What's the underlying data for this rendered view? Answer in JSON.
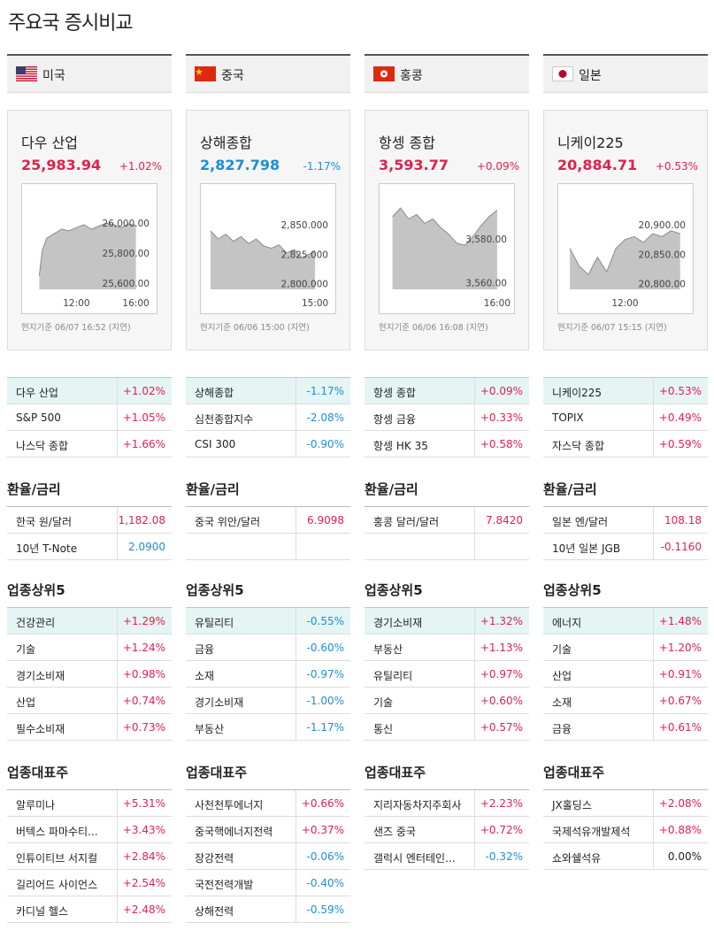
{
  "title": "주요국 증시비교",
  "markets": [
    {
      "country": "미국",
      "index_name": "다우 산업",
      "value": "25,983.94",
      "change": "+1.02%",
      "chart": {
        "type": "area",
        "xlim": [
          9.0,
          16.8
        ],
        "ylim": [
          25560,
          26160
        ],
        "xticks": [
          {
            "value": 12,
            "label": "12:00"
          },
          {
            "value": 16,
            "label": "16:00"
          }
        ],
        "yticks": [
          {
            "value": 26000,
            "label": "26,000.00"
          },
          {
            "value": 25800,
            "label": "25,800.00"
          },
          {
            "value": 25600,
            "label": "25,600.00"
          }
        ],
        "x": [
          9.5,
          9.7,
          10,
          10.5,
          11,
          11.5,
          12,
          12.5,
          13,
          13.5,
          14,
          14.5,
          15,
          15.5,
          16
        ],
        "values": [
          25650,
          25820,
          25900,
          25930,
          25960,
          25950,
          25970,
          25990,
          25960,
          25980,
          26000,
          25990,
          25970,
          25995,
          25984
        ]
      },
      "timestamp": "현지기준 06/07 16:52 (지연)",
      "indices": [
        [
          "다우 산업",
          "+1.02%"
        ],
        [
          "S&P 500",
          "+1.05%"
        ],
        [
          "나스닥 종합",
          "+1.66%"
        ]
      ],
      "fx_title": "환율/금리",
      "fx": [
        {
          "name": "한국 원/달러",
          "value": "1,182.08",
          "color": "#e0204f"
        },
        {
          "name": "10년 T-Note",
          "value": "2.0900",
          "color": "#1b8fd8"
        }
      ],
      "sectors_title": "업종상위5",
      "sectors": [
        [
          "건강관리",
          "+1.29%"
        ],
        [
          "기술",
          "+1.24%"
        ],
        [
          "경기소비재",
          "+0.98%"
        ],
        [
          "산업",
          "+0.74%"
        ],
        [
          "필수소비재",
          "+0.73%"
        ]
      ],
      "stocks_title": "업종대표주",
      "stocks": [
        [
          "알루미나",
          "+5.31%"
        ],
        [
          "버텍스 파마수티...",
          "+3.43%"
        ],
        [
          "인튜이티브 서지컬",
          "+2.84%"
        ],
        [
          "길리어드 사이언스",
          "+2.54%"
        ],
        [
          "카디널 헬스",
          "+2.48%"
        ]
      ]
    },
    {
      "country": "중국",
      "index_name": "상해종합",
      "value": "2,827.798",
      "change": "-1.17%",
      "chart": {
        "type": "area",
        "xlim": [
          9.5,
          15.6
        ],
        "ylim": [
          2795,
          2872
        ],
        "xticks": [
          {
            "value": 15,
            "label": "15:00"
          }
        ],
        "yticks": [
          {
            "value": 2850,
            "label": "2,850.000"
          },
          {
            "value": 2825,
            "label": "2,825.000"
          },
          {
            "value": 2800,
            "label": "2,800.000"
          }
        ],
        "x": [
          9.5,
          9.9,
          10.3,
          10.7,
          11.1,
          11.5,
          11.9,
          12.3,
          12.7,
          13.1,
          13.5,
          13.9,
          14.3,
          14.7,
          15
        ],
        "values": [
          2845,
          2838,
          2842,
          2836,
          2840,
          2834,
          2838,
          2832,
          2830,
          2833,
          2826,
          2829,
          2822,
          2825,
          2828
        ]
      },
      "timestamp": "현지기준 06/06 15:00 (지연)",
      "indices": [
        [
          "상해종합",
          "-1.17%"
        ],
        [
          "심천종합지수",
          "-2.08%"
        ],
        [
          "CSI 300",
          "-0.90%"
        ]
      ],
      "fx_title": "환율/금리",
      "fx": [
        {
          "name": "중국 위안/달러",
          "value": "6.9098",
          "color": "#e0204f"
        }
      ],
      "sectors_title": "업종상위5",
      "sectors": [
        [
          "유틸리티",
          "-0.55%"
        ],
        [
          "금융",
          "-0.60%"
        ],
        [
          "소재",
          "-0.97%"
        ],
        [
          "경기소비재",
          "-1.00%"
        ],
        [
          "부동산",
          "-1.17%"
        ]
      ],
      "stocks_title": "업종대표주",
      "stocks": [
        [
          "사천천투에너지",
          "+0.66%"
        ],
        [
          "중국핵에너지전력",
          "+0.37%"
        ],
        [
          "장강전력",
          "-0.06%"
        ],
        [
          "국전전력개발",
          "-0.40%"
        ],
        [
          "상해전력",
          "-0.59%"
        ]
      ]
    },
    {
      "country": "홍콩",
      "index_name": "항셍 종합",
      "value": "3,593.77",
      "change": "+0.09%",
      "chart": {
        "type": "area",
        "xlim": [
          9.3,
          16.5
        ],
        "ylim": [
          3557,
          3598
        ],
        "xticks": [
          {
            "value": 16,
            "label": "16:00"
          }
        ],
        "yticks": [
          {
            "value": 3580,
            "label": "3,580.00"
          },
          {
            "value": 3560,
            "label": "3,560.00"
          }
        ],
        "x": [
          9.5,
          10,
          10.5,
          11,
          11.5,
          12,
          12.5,
          13,
          13.5,
          14,
          14.5,
          15,
          15.5,
          16
        ],
        "values": [
          3590,
          3594,
          3589,
          3591,
          3587,
          3589,
          3585,
          3582,
          3578,
          3577,
          3581,
          3586,
          3590,
          3593
        ]
      },
      "timestamp": "현지기준 06/06 16:08 (지연)",
      "indices": [
        [
          "항셍 종합",
          "+0.09%"
        ],
        [
          "항셍 금융",
          "+0.33%"
        ],
        [
          "항셍 HK 35",
          "+0.58%"
        ]
      ],
      "fx_title": "환율/금리",
      "fx": [
        {
          "name": "홍콩 달러/달러",
          "value": "7.8420",
          "color": "#e0204f"
        }
      ],
      "sectors_title": "업종상위5",
      "sectors": [
        [
          "경기소비재",
          "+1.32%"
        ],
        [
          "부동산",
          "+1.13%"
        ],
        [
          "유틸리티",
          "+0.97%"
        ],
        [
          "기술",
          "+0.60%"
        ],
        [
          "통신",
          "+0.57%"
        ]
      ],
      "stocks_title": "업종대표주",
      "stocks": [
        [
          "지리자동차지주회사",
          "+2.23%"
        ],
        [
          "샌즈 중국",
          "+0.72%"
        ],
        [
          "갤럭시 엔터테인...",
          "-0.32%"
        ]
      ]
    },
    {
      "country": "일본",
      "index_name": "니케이225",
      "value": "20,884.71",
      "change": "+0.53%",
      "chart": {
        "type": "area",
        "xlim": [
          8.9,
          15.2
        ],
        "ylim": [
          20790,
          20944
        ],
        "xticks": [
          {
            "value": 12,
            "label": "12:00"
          }
        ],
        "yticks": [
          {
            "value": 20900,
            "label": "20,900.00"
          },
          {
            "value": 20850,
            "label": "20,850.00"
          },
          {
            "value": 20800,
            "label": "20,800.00"
          }
        ],
        "x": [
          9,
          9.5,
          10,
          10.5,
          11,
          11.5,
          12,
          12.5,
          13,
          13.5,
          14,
          14.5,
          15
        ],
        "values": [
          20860,
          20830,
          20815,
          20845,
          20820,
          20860,
          20875,
          20880,
          20870,
          20885,
          20880,
          20890,
          20885
        ]
      },
      "timestamp": "현지기준 06/07 15:15 (지연)",
      "indices": [
        [
          "니케이225",
          "+0.53%"
        ],
        [
          "TOPIX",
          "+0.49%"
        ],
        [
          "자스닥 종합",
          "+0.59%"
        ]
      ],
      "fx_title": "환율/금리",
      "fx": [
        {
          "name": "일본 엔/달러",
          "value": "108.18",
          "color": "#e0204f"
        },
        {
          "name": "10년 일본 JGB",
          "value": "-0.1160",
          "color": "#e0204f"
        }
      ],
      "sectors_title": "업종상위5",
      "sectors": [
        [
          "에너지",
          "+1.48%"
        ],
        [
          "기술",
          "+1.20%"
        ],
        [
          "산업",
          "+0.91%"
        ],
        [
          "소재",
          "+0.67%"
        ],
        [
          "금융",
          "+0.61%"
        ]
      ],
      "stocks_title": "업종대표주",
      "stocks": [
        [
          "JX홀딩스",
          "+2.08%"
        ],
        [
          "국제석유개발제석",
          "+0.88%"
        ],
        [
          "쇼와쉘석유",
          "0.00%"
        ]
      ]
    }
  ]
}
